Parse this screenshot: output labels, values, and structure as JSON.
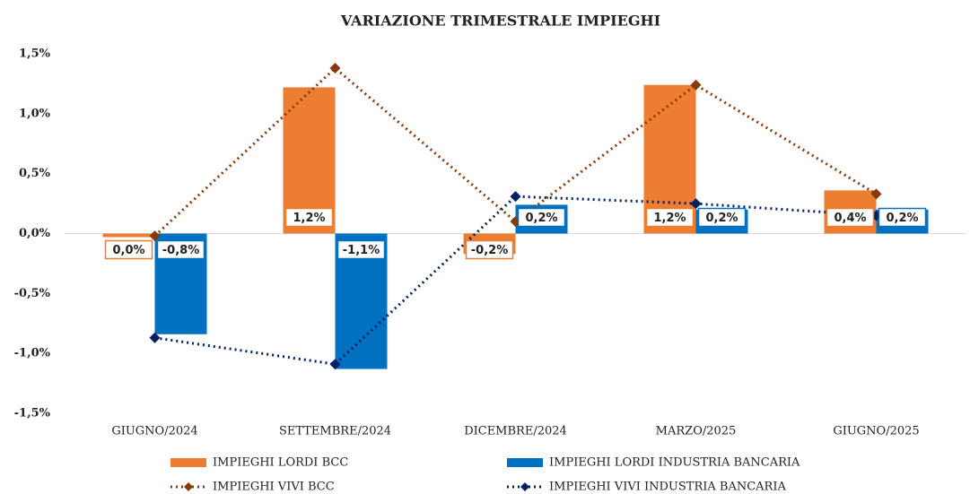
{
  "chart_data": {
    "type": "bar_line",
    "title": "VARIAZIONE TRIMESTRALE IMPIEGHI",
    "categories": [
      "GIUGNO/2024",
      "SETTEMBRE/2024",
      "DICEMBRE/2024",
      "MARZO/2025",
      "GIUGNO/2025"
    ],
    "ylim": [
      -1.5,
      1.5
    ],
    "yticks": [
      {
        "value": 1.5,
        "label": "1,5%"
      },
      {
        "value": 1.0,
        "label": "1,0%"
      },
      {
        "value": 0.5,
        "label": "0,5%"
      },
      {
        "value": 0,
        "label": "0,0%"
      },
      {
        "value": -0.5,
        "label": "-0,5%"
      },
      {
        "value": -1.0,
        "label": "-1,0%"
      },
      {
        "value": -1.5,
        "label": "-1,5%"
      }
    ],
    "series": [
      {
        "name": "IMPIEGHI LORDI BCC",
        "type": "bar",
        "color": "#ed7d31",
        "values": [
          -0.03,
          1.22,
          -0.17,
          1.24,
          0.36
        ],
        "value_labels": [
          "0,0%",
          "1,2%",
          "-0,2%",
          "1,2%",
          "0,4%"
        ]
      },
      {
        "name": "IMPIEGHI LORDI INDUSTRIA BANCARIA",
        "type": "bar",
        "color": "#0070c0",
        "values": [
          -0.84,
          -1.13,
          0.24,
          0.2,
          0.2
        ],
        "value_labels": [
          "-0,8%",
          "-1,1%",
          "0,2%",
          "0,2%",
          "0,2%"
        ]
      },
      {
        "name": "IMPIEGHI VIVI BCC",
        "type": "line",
        "color": "#843c0c",
        "values": [
          -0.02,
          1.38,
          0.1,
          1.24,
          0.33
        ]
      },
      {
        "name": "IMPIEGHI VIVI INDUSTRIA BANCARIA",
        "type": "line",
        "color": "#002060",
        "values": [
          -0.87,
          -1.09,
          0.31,
          0.25,
          0.15
        ]
      }
    ]
  }
}
